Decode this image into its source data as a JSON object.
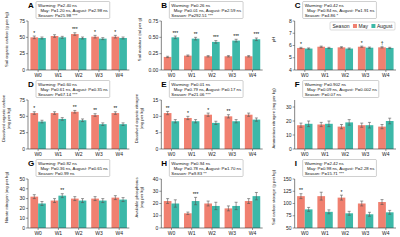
{
  "chart_data": [
    {
      "type": "bar",
      "title": "A",
      "ylabel": "Soil organic carbon (g per kg)",
      "text_box": [
        "Warming: P=2.40 ns",
        "  May: P=1.20 ns, August: P=2.98 ns",
        "Season: P=25.98 ***"
      ],
      "categories": [
        "W0",
        "W1",
        "W2",
        "W3",
        "W4"
      ],
      "series": [
        {
          "name": "May",
          "color": "#F08070",
          "values": [
            50,
            52,
            55,
            51,
            51
          ],
          "errors": [
            2,
            2,
            2,
            2,
            2
          ]
        },
        {
          "name": "August",
          "color": "#3CB8A8",
          "values": [
            49,
            50,
            49,
            48,
            49
          ],
          "errors": [
            1.5,
            1.5,
            1.5,
            1.5,
            1.5
          ]
        }
      ],
      "annotations": [
        {
          "text": "*",
          "series": "May",
          "category": "W0"
        },
        {
          "text": "***",
          "series": "May",
          "category": "W2"
        },
        {
          "text": "*",
          "series": "May",
          "category": "W3"
        },
        {
          "text": "*",
          "series": "May",
          "category": "W4"
        }
      ],
      "ylim": [
        0,
        75
      ],
      "yticks": [
        0,
        25,
        50,
        75
      ]
    },
    {
      "type": "bar",
      "title": "B",
      "ylabel": "Soil moisture (ml per g)",
      "text_box": [
        "Warming: P=0.26 ns",
        "  May: P=0.01 ns, August: P=2.59 ns",
        "Season: P=292.51 ***"
      ],
      "categories": [
        "W0",
        "W1",
        "W2",
        "W3",
        "W4"
      ],
      "series": [
        {
          "name": "May",
          "color": "#F08070",
          "values": [
            0.2,
            0.22,
            0.21,
            0.21,
            0.21
          ],
          "errors": [
            0.01,
            0.01,
            0.01,
            0.01,
            0.01
          ]
        },
        {
          "name": "August",
          "color": "#3CB8A8",
          "values": [
            0.5,
            0.48,
            0.43,
            0.45,
            0.47
          ],
          "errors": [
            0.02,
            0.02,
            0.02,
            0.02,
            0.02
          ]
        }
      ],
      "annotations": [
        {
          "text": "***",
          "series": "August",
          "category": "W0"
        },
        {
          "text": "**",
          "series": "August",
          "category": "W1"
        },
        {
          "text": "***",
          "series": "August",
          "category": "W2"
        },
        {
          "text": "***",
          "series": "August",
          "category": "W3"
        },
        {
          "text": "***",
          "series": "August",
          "category": "W4"
        }
      ],
      "ylim": [
        0,
        0.75
      ],
      "yticks": [
        {
          "value": 0,
          "label": "0.00"
        },
        {
          "value": 0.25,
          "label": "0.25"
        },
        {
          "value": 0.5,
          "label": "0.50"
        },
        {
          "value": 0.75,
          "label": "0.75"
        }
      ]
    },
    {
      "type": "bar",
      "title": "C",
      "ylabel": "pH",
      "text_box": [
        "Warming: P=0.42 ns",
        "  May: P=0.84 ns, August: P=1.91 ns",
        "Season: P=4.86 *"
      ],
      "categories": [
        "W0",
        "W1",
        "W2",
        "W3",
        "W4"
      ],
      "series": [
        {
          "name": "May",
          "color": "#F08070",
          "values": [
            5.8,
            5.9,
            5.85,
            5.9,
            5.85
          ],
          "errors": [
            0.05,
            0.05,
            0.05,
            0.05,
            0.05
          ]
        },
        {
          "name": "August",
          "color": "#3CB8A8",
          "values": [
            5.75,
            5.8,
            5.75,
            5.82,
            5.8
          ],
          "errors": [
            0.05,
            0.05,
            0.05,
            0.05,
            0.05
          ]
        }
      ],
      "annotations": [
        {
          "text": "*",
          "series": "May",
          "category": "W0"
        },
        {
          "text": "*",
          "series": "May",
          "category": "W3"
        },
        {
          "text": "†",
          "series": "May",
          "category": "W4"
        }
      ],
      "legend": "upper right",
      "legend_title": "Season",
      "ylim": [
        4,
        8
      ],
      "yticks": [
        4,
        5,
        6,
        7,
        8
      ]
    },
    {
      "type": "bar",
      "title": "D",
      "ylabel": "Dissolved organic carbon\n(mg per kg)",
      "text_box": [
        "Warming: P=0.60 ns",
        "  May: P=0.61 ns, August: P=0.35 ns",
        "Season: P=67.14 ***"
      ],
      "categories": [
        "W0",
        "W1",
        "W2",
        "W3",
        "W4"
      ],
      "series": [
        {
          "name": "May",
          "color": "#F08070",
          "values": [
            55,
            55,
            57,
            52,
            55
          ],
          "errors": [
            2,
            2,
            2,
            2,
            2
          ]
        },
        {
          "name": "August",
          "color": "#3CB8A8",
          "values": [
            42,
            46,
            44,
            38,
            38
          ],
          "errors": [
            2,
            2,
            2,
            2,
            2
          ]
        }
      ],
      "annotations": [
        {
          "text": "*",
          "series": "May",
          "category": "W0"
        },
        {
          "text": "**",
          "series": "May",
          "category": "W2"
        },
        {
          "text": "**",
          "series": "May",
          "category": "W3"
        },
        {
          "text": "**",
          "series": "May",
          "category": "W4"
        }
      ],
      "ylim": [
        0,
        75
      ],
      "yticks": [
        0,
        25,
        50,
        75
      ]
    },
    {
      "type": "bar",
      "title": "E",
      "ylabel": "Dissolved organic nitrogen\n(mg per kg)",
      "text_box": [
        "Warming: P=0.01 ns",
        "  May: P=0.79 ns, August: P=0.17 ns",
        "Season: P=21.06 ***"
      ],
      "categories": [
        "W0",
        "W1",
        "W2",
        "W3",
        "W4"
      ],
      "series": [
        {
          "name": "May",
          "color": "#F08070",
          "values": [
            11,
            9.5,
            10.5,
            10,
            10.5
          ],
          "errors": [
            0.5,
            0.5,
            0.5,
            0.5,
            0.5
          ]
        },
        {
          "name": "August",
          "color": "#3CB8A8",
          "values": [
            8.5,
            8.5,
            8.0,
            8.5,
            9.0
          ],
          "errors": [
            0.5,
            0.5,
            0.5,
            0.5,
            0.5
          ]
        }
      ],
      "annotations": [
        {
          "text": "**",
          "series": "May",
          "category": "W0"
        },
        {
          "text": "*",
          "series": "May",
          "category": "W1"
        },
        {
          "text": "*",
          "series": "May",
          "category": "W2"
        },
        {
          "text": "**",
          "series": "May",
          "category": "W3"
        }
      ],
      "ylim": [
        0,
        15
      ],
      "yticks": [
        0,
        5,
        10,
        15
      ]
    },
    {
      "type": "bar",
      "title": "F",
      "ylabel": "Ammonium nitrogen (mg per kg)",
      "text_box": [
        "Warming: P=0.902 ns",
        "  May: P=0.09 ns, August: P=0.002 ns",
        "Season: P=0.07 ns"
      ],
      "categories": [
        "W0",
        "W1",
        "W2",
        "W3",
        "W4"
      ],
      "series": [
        {
          "name": "May",
          "color": "#F08070",
          "values": [
            17,
            17.5,
            16,
            17,
            16
          ],
          "errors": [
            1.5,
            1.5,
            1.5,
            1.5,
            1.5
          ]
        },
        {
          "name": "August",
          "color": "#3CB8A8",
          "values": [
            18,
            18,
            19,
            17,
            20
          ],
          "errors": [
            2,
            2,
            2,
            2,
            2
          ]
        }
      ],
      "ylim": [
        0,
        35
      ],
      "yticks": [
        0,
        10,
        20,
        30
      ]
    },
    {
      "type": "bar",
      "title": "G",
      "ylabel": "Nitrate nitrogen (mg per kg)",
      "text_box": [
        "Warming: P=0.82 ns",
        "  May: P=0.36 ns, August: P=0.65 ns",
        "Season: P=0.99 ns"
      ],
      "categories": [
        "W0",
        "W1",
        "W2",
        "W3",
        "W4"
      ],
      "series": [
        {
          "name": "May",
          "color": "#F08070",
          "values": [
            32,
            28,
            30,
            30,
            31
          ],
          "errors": [
            2,
            2,
            2,
            2,
            2
          ]
        },
        {
          "name": "August",
          "color": "#3CB8A8",
          "values": [
            25,
            33,
            28,
            28,
            29
          ],
          "errors": [
            2,
            2,
            2,
            2,
            2
          ]
        }
      ],
      "annotations": [
        {
          "text": "**",
          "series": "August",
          "category": "W1"
        }
      ],
      "ylim": [
        0,
        50
      ],
      "yticks": [
        0,
        10,
        20,
        30,
        40,
        50
      ]
    },
    {
      "type": "bar",
      "title": "H",
      "ylabel": "Available phosphorus\n(mg per kg)",
      "text_box": [
        "Warming: P=0.94 ns",
        "  May: P=0.78 ns, August: P=1.70 ns",
        "Season: P=9.83 **"
      ],
      "categories": [
        "W0",
        "W1",
        "W2",
        "W3",
        "W4"
      ],
      "series": [
        {
          "name": "May",
          "color": "#F08070",
          "values": [
            22,
            12,
            20,
            16,
            22
          ],
          "errors": [
            2,
            1,
            2,
            2,
            2
          ]
        },
        {
          "name": "August",
          "color": "#3CB8A8",
          "values": [
            20,
            22,
            18,
            18,
            26
          ],
          "errors": [
            3,
            3,
            3,
            3,
            3
          ]
        }
      ],
      "annotations": [
        {
          "text": "***",
          "series": "August",
          "category": "W1"
        }
      ],
      "ylim": [
        0,
        40
      ],
      "yticks": [
        0,
        10,
        20,
        30,
        40
      ]
    },
    {
      "type": "bar",
      "title": "I",
      "ylabel": "Soil carbon storage (g per kg)",
      "text_box": [
        "Warming: P=2.42 ns",
        "  May: P=0.98 ns, August: P=2.28 ns",
        "Season: P=15.71 ***"
      ],
      "categories": [
        "W0",
        "W1",
        "W2",
        "W3",
        "W4"
      ],
      "series": [
        {
          "name": "May",
          "color": "#F08070",
          "values": [
            115,
            115,
            112,
            100,
            103
          ],
          "errors": [
            5,
            8,
            5,
            5,
            5
          ]
        },
        {
          "name": "August",
          "color": "#3CB8A8",
          "values": [
            88,
            83,
            80,
            78,
            82
          ],
          "errors": [
            4,
            4,
            4,
            4,
            4
          ]
        }
      ],
      "annotations": [
        {
          "text": "**",
          "series": "May",
          "category": "W0"
        },
        {
          "text": "*",
          "series": "May",
          "category": "W2"
        }
      ],
      "ylim": [
        50,
        150
      ],
      "yticks": [
        50,
        75,
        100,
        125,
        150
      ]
    }
  ]
}
